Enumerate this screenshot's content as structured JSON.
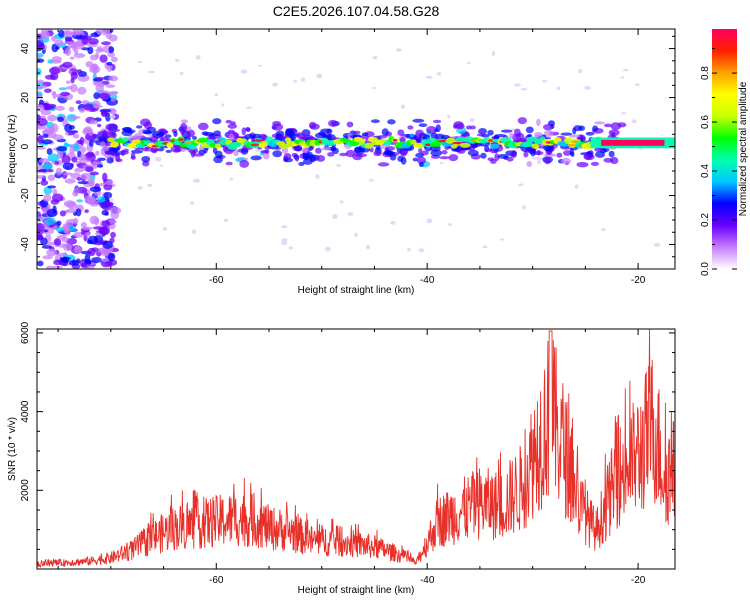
{
  "title": "C2E5.2026.107.04.58.G28",
  "chart_data": [
    {
      "type": "heatmap",
      "xlabel": "Height of straight line (km)",
      "ylabel": "Frequency (Hz)",
      "xlim": [
        -77,
        -16.5
      ],
      "ylim": [
        -50,
        48
      ],
      "xticks": [
        -60,
        -40,
        -20
      ],
      "xtick_labels": [
        "-60",
        "-40",
        "-20"
      ],
      "yticks": [
        -40,
        -20,
        0,
        20,
        40
      ],
      "ytick_labels": [
        "-40",
        "-20",
        "0",
        "20",
        "40"
      ],
      "colorbar": {
        "label": "Normalized spectral amplitude",
        "range": [
          0,
          0.98
        ],
        "ticks": [
          0.0,
          0.2,
          0.4,
          0.6,
          0.8
        ],
        "tick_labels": [
          "0.0",
          "0.2",
          "0.4",
          "0.6",
          "0.8"
        ],
        "colors": [
          "#ffffff",
          "#c77dff",
          "#6a00ff",
          "#0000ff",
          "#00c8ff",
          "#00ffb0",
          "#00ff00",
          "#c8ff00",
          "#ffff00",
          "#ffa000",
          "#ff2000",
          "#ff0060"
        ]
      },
      "ridge": {
        "freq_hz": 1.5,
        "x_start": -70,
        "x_end": -16.5,
        "peak_x_start": -23.5
      }
    },
    {
      "type": "line",
      "xlabel": "Height of straight line (km)",
      "ylabel": "SNR (10 * v/v)",
      "xlim": [
        -77,
        -16.5
      ],
      "ylim": [
        0,
        6100
      ],
      "xticks": [
        -60,
        -40,
        -20
      ],
      "xtick_labels": [
        "-60",
        "-40",
        "-20"
      ],
      "yticks": [
        2000,
        4000,
        6000
      ],
      "ytick_labels": [
        "2000",
        "4000",
        "6000"
      ],
      "series": [
        {
          "name": "SNR",
          "color": "#e8302a",
          "envelope_x": [
            -77,
            -72,
            -70,
            -68,
            -66,
            -64,
            -62,
            -60,
            -58,
            -56,
            -55,
            -53,
            -51,
            -49,
            -47,
            -45,
            -43,
            -41,
            -39,
            -37,
            -35,
            -33,
            -31,
            -29.5,
            -28.3,
            -27,
            -25.5,
            -24,
            -22,
            -20,
            -18.5,
            -17.5,
            -16.5
          ],
          "envelope_y": [
            150,
            250,
            350,
            600,
            1000,
            1300,
            1400,
            1500,
            1600,
            1500,
            1300,
            1200,
            900,
            900,
            800,
            700,
            500,
            200,
            1500,
            1800,
            2100,
            2000,
            2600,
            4000,
            5000,
            3800,
            2000,
            1200,
            2900,
            3600,
            4600,
            3000,
            3100
          ]
        }
      ]
    }
  ]
}
